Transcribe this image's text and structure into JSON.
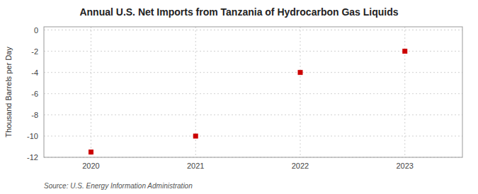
{
  "chart_data": {
    "type": "scatter",
    "title": "Annual U.S. Net Imports from Tanzania of Hydrocarbon Gas Liquids",
    "y_label": "Thousand Barrels per Day",
    "source": "Source: U.S. Energy Information Administration",
    "x": [
      2020,
      2021,
      2022,
      2023
    ],
    "values": [
      -11.5,
      -10,
      -4,
      -2
    ],
    "color": "#cc0000",
    "marker": "square",
    "xlim": [
      2019.55,
      2023.55
    ],
    "ylim": [
      -12,
      0.3
    ],
    "xticks": [
      2020,
      2021,
      2022,
      2023
    ],
    "yticks": [
      0,
      -2,
      -4,
      -6,
      -8,
      -10,
      -12
    ],
    "grid": true
  }
}
